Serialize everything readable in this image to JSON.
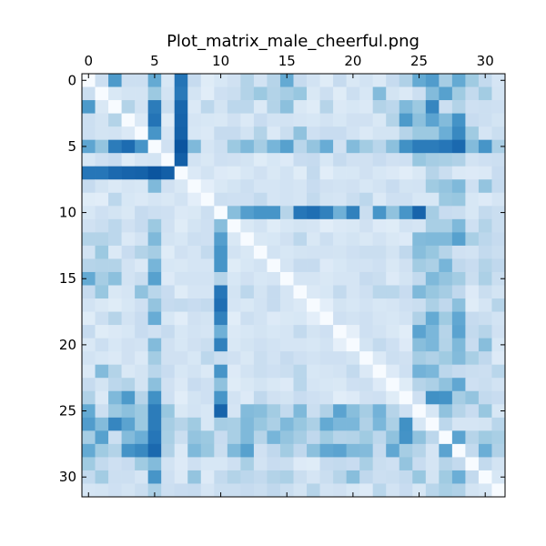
{
  "chart_data": {
    "type": "heatmap",
    "title": "Plot_matrix_male_cheerful.png",
    "xlabel": "",
    "ylabel": "",
    "colormap": "Blues",
    "value_range": [
      0,
      1
    ],
    "x_ticks": [
      0,
      5,
      10,
      15,
      20,
      25,
      30
    ],
    "y_ticks": [
      0,
      5,
      10,
      15,
      20,
      25,
      30
    ],
    "x_tick_position": "top",
    "n_rows": 32,
    "n_cols": 32,
    "matrix": [
      [
        0.0,
        0.22,
        0.59,
        0.22,
        0.22,
        0.52,
        0.16,
        0.74,
        0.25,
        0.12,
        0.16,
        0.2,
        0.31,
        0.19,
        0.3,
        0.52,
        0.25,
        0.19,
        0.12,
        0.25,
        0.15,
        0.19,
        0.14,
        0.25,
        0.32,
        0.52,
        0.58,
        0.35,
        0.52,
        0.37,
        0.26,
        0.17
      ],
      [
        0.23,
        0.0,
        0.15,
        0.18,
        0.18,
        0.38,
        0.19,
        0.72,
        0.18,
        0.11,
        0.21,
        0.23,
        0.31,
        0.38,
        0.31,
        0.35,
        0.39,
        0.15,
        0.22,
        0.12,
        0.22,
        0.16,
        0.44,
        0.18,
        0.14,
        0.22,
        0.44,
        0.56,
        0.37,
        0.26,
        0.36,
        0.18
      ],
      [
        0.59,
        0.15,
        0.0,
        0.31,
        0.19,
        0.71,
        0.23,
        0.79,
        0.14,
        0.28,
        0.18,
        0.28,
        0.28,
        0.14,
        0.31,
        0.42,
        0.15,
        0.12,
        0.3,
        0.14,
        0.16,
        0.14,
        0.31,
        0.28,
        0.45,
        0.38,
        0.67,
        0.22,
        0.31,
        0.21,
        0.22,
        0.21
      ],
      [
        0.22,
        0.18,
        0.31,
        0.0,
        0.14,
        0.74,
        0.12,
        0.8,
        0.17,
        0.16,
        0.15,
        0.2,
        0.14,
        0.24,
        0.19,
        0.19,
        0.17,
        0.16,
        0.19,
        0.16,
        0.2,
        0.2,
        0.15,
        0.31,
        0.59,
        0.42,
        0.55,
        0.44,
        0.62,
        0.24,
        0.22,
        0.18
      ],
      [
        0.22,
        0.18,
        0.19,
        0.14,
        0.0,
        0.61,
        0.17,
        0.81,
        0.16,
        0.14,
        0.25,
        0.25,
        0.19,
        0.31,
        0.14,
        0.23,
        0.41,
        0.21,
        0.24,
        0.24,
        0.19,
        0.14,
        0.18,
        0.18,
        0.3,
        0.38,
        0.38,
        0.5,
        0.66,
        0.37,
        0.17,
        0.23
      ],
      [
        0.54,
        0.4,
        0.71,
        0.77,
        0.61,
        0.0,
        0.2,
        0.86,
        0.45,
        0.17,
        0.22,
        0.38,
        0.45,
        0.35,
        0.47,
        0.56,
        0.29,
        0.4,
        0.51,
        0.2,
        0.44,
        0.36,
        0.29,
        0.42,
        0.63,
        0.71,
        0.71,
        0.73,
        0.78,
        0.44,
        0.61,
        0.33
      ],
      [
        0.16,
        0.21,
        0.24,
        0.12,
        0.17,
        0.18,
        0.0,
        0.82,
        0.19,
        0.15,
        0.21,
        0.2,
        0.18,
        0.12,
        0.16,
        0.13,
        0.24,
        0.25,
        0.16,
        0.25,
        0.2,
        0.2,
        0.24,
        0.2,
        0.21,
        0.39,
        0.35,
        0.34,
        0.32,
        0.19,
        0.21,
        0.22
      ],
      [
        0.73,
        0.73,
        0.78,
        0.8,
        0.81,
        0.86,
        0.82,
        0.0,
        0.14,
        0.19,
        0.13,
        0.12,
        0.16,
        0.2,
        0.15,
        0.19,
        0.12,
        0.26,
        0.11,
        0.16,
        0.16,
        0.2,
        0.16,
        0.14,
        0.11,
        0.15,
        0.3,
        0.23,
        0.14,
        0.13,
        0.14,
        0.24
      ],
      [
        0.25,
        0.18,
        0.14,
        0.17,
        0.16,
        0.45,
        0.2,
        0.15,
        0.0,
        0.1,
        0.15,
        0.18,
        0.22,
        0.17,
        0.17,
        0.19,
        0.17,
        0.24,
        0.2,
        0.19,
        0.2,
        0.16,
        0.19,
        0.24,
        0.18,
        0.19,
        0.37,
        0.4,
        0.45,
        0.21,
        0.4,
        0.25
      ],
      [
        0.12,
        0.11,
        0.28,
        0.16,
        0.14,
        0.17,
        0.15,
        0.19,
        0.1,
        0.0,
        0.22,
        0.21,
        0.21,
        0.26,
        0.17,
        0.19,
        0.17,
        0.26,
        0.18,
        0.17,
        0.23,
        0.28,
        0.14,
        0.21,
        0.21,
        0.16,
        0.16,
        0.38,
        0.39,
        0.16,
        0.13,
        0.17
      ],
      [
        0.16,
        0.21,
        0.18,
        0.15,
        0.25,
        0.22,
        0.21,
        0.14,
        0.15,
        0.22,
        0.0,
        0.43,
        0.57,
        0.61,
        0.61,
        0.3,
        0.73,
        0.76,
        0.69,
        0.49,
        0.69,
        0.23,
        0.61,
        0.41,
        0.61,
        0.8,
        0.35,
        0.24,
        0.23,
        0.16,
        0.26,
        0.23
      ],
      [
        0.2,
        0.23,
        0.28,
        0.2,
        0.25,
        0.38,
        0.2,
        0.12,
        0.18,
        0.21,
        0.43,
        0.0,
        0.15,
        0.19,
        0.12,
        0.16,
        0.18,
        0.17,
        0.11,
        0.14,
        0.15,
        0.2,
        0.13,
        0.12,
        0.19,
        0.17,
        0.34,
        0.34,
        0.45,
        0.21,
        0.31,
        0.23
      ],
      [
        0.31,
        0.31,
        0.28,
        0.14,
        0.19,
        0.45,
        0.18,
        0.16,
        0.22,
        0.21,
        0.57,
        0.15,
        0.0,
        0.15,
        0.16,
        0.2,
        0.28,
        0.15,
        0.22,
        0.16,
        0.18,
        0.15,
        0.19,
        0.15,
        0.13,
        0.44,
        0.45,
        0.45,
        0.56,
        0.34,
        0.28,
        0.25
      ],
      [
        0.19,
        0.38,
        0.14,
        0.24,
        0.31,
        0.35,
        0.12,
        0.2,
        0.17,
        0.26,
        0.61,
        0.19,
        0.15,
        0.0,
        0.19,
        0.16,
        0.18,
        0.19,
        0.19,
        0.18,
        0.21,
        0.23,
        0.23,
        0.18,
        0.27,
        0.43,
        0.39,
        0.3,
        0.2,
        0.19,
        0.26,
        0.23
      ],
      [
        0.3,
        0.31,
        0.31,
        0.19,
        0.14,
        0.47,
        0.16,
        0.15,
        0.17,
        0.17,
        0.61,
        0.12,
        0.16,
        0.19,
        0.0,
        0.17,
        0.25,
        0.25,
        0.13,
        0.16,
        0.19,
        0.19,
        0.21,
        0.15,
        0.2,
        0.36,
        0.33,
        0.47,
        0.27,
        0.24,
        0.31,
        0.27
      ],
      [
        0.52,
        0.35,
        0.42,
        0.19,
        0.23,
        0.56,
        0.13,
        0.19,
        0.19,
        0.19,
        0.3,
        0.16,
        0.2,
        0.16,
        0.17,
        0.0,
        0.17,
        0.17,
        0.15,
        0.17,
        0.17,
        0.25,
        0.23,
        0.13,
        0.18,
        0.26,
        0.45,
        0.4,
        0.36,
        0.23,
        0.33,
        0.23
      ],
      [
        0.25,
        0.39,
        0.15,
        0.17,
        0.41,
        0.29,
        0.24,
        0.12,
        0.17,
        0.17,
        0.73,
        0.18,
        0.28,
        0.18,
        0.25,
        0.17,
        0.0,
        0.14,
        0.16,
        0.26,
        0.17,
        0.21,
        0.29,
        0.29,
        0.24,
        0.45,
        0.39,
        0.35,
        0.27,
        0.13,
        0.23,
        0.18
      ],
      [
        0.19,
        0.15,
        0.12,
        0.16,
        0.21,
        0.4,
        0.25,
        0.26,
        0.24,
        0.26,
        0.76,
        0.17,
        0.15,
        0.19,
        0.25,
        0.17,
        0.14,
        0.0,
        0.1,
        0.18,
        0.16,
        0.19,
        0.16,
        0.17,
        0.21,
        0.23,
        0.33,
        0.27,
        0.42,
        0.12,
        0.17,
        0.3
      ],
      [
        0.12,
        0.22,
        0.3,
        0.19,
        0.24,
        0.51,
        0.16,
        0.11,
        0.2,
        0.18,
        0.69,
        0.11,
        0.22,
        0.19,
        0.13,
        0.15,
        0.16,
        0.1,
        0.0,
        0.21,
        0.19,
        0.21,
        0.17,
        0.16,
        0.19,
        0.32,
        0.52,
        0.37,
        0.53,
        0.25,
        0.23,
        0.19
      ],
      [
        0.25,
        0.12,
        0.14,
        0.16,
        0.24,
        0.2,
        0.25,
        0.16,
        0.19,
        0.17,
        0.49,
        0.14,
        0.16,
        0.18,
        0.16,
        0.17,
        0.26,
        0.18,
        0.21,
        0.0,
        0.09,
        0.21,
        0.19,
        0.15,
        0.11,
        0.55,
        0.46,
        0.3,
        0.55,
        0.26,
        0.3,
        0.2
      ],
      [
        0.15,
        0.22,
        0.16,
        0.2,
        0.19,
        0.44,
        0.2,
        0.16,
        0.2,
        0.23,
        0.69,
        0.15,
        0.18,
        0.21,
        0.19,
        0.17,
        0.17,
        0.16,
        0.19,
        0.09,
        0.0,
        0.18,
        0.26,
        0.21,
        0.13,
        0.43,
        0.46,
        0.31,
        0.45,
        0.24,
        0.43,
        0.16
      ],
      [
        0.19,
        0.16,
        0.14,
        0.2,
        0.14,
        0.36,
        0.2,
        0.2,
        0.16,
        0.28,
        0.23,
        0.2,
        0.15,
        0.23,
        0.19,
        0.25,
        0.21,
        0.19,
        0.21,
        0.21,
        0.18,
        0.0,
        0.14,
        0.22,
        0.2,
        0.35,
        0.32,
        0.37,
        0.44,
        0.34,
        0.27,
        0.13
      ],
      [
        0.14,
        0.44,
        0.31,
        0.15,
        0.18,
        0.29,
        0.24,
        0.16,
        0.19,
        0.14,
        0.61,
        0.13,
        0.19,
        0.23,
        0.21,
        0.23,
        0.29,
        0.16,
        0.17,
        0.19,
        0.26,
        0.14,
        0.0,
        0.13,
        0.21,
        0.48,
        0.46,
        0.28,
        0.25,
        0.23,
        0.22,
        0.29
      ],
      [
        0.25,
        0.18,
        0.28,
        0.31,
        0.18,
        0.42,
        0.2,
        0.14,
        0.24,
        0.21,
        0.41,
        0.12,
        0.15,
        0.18,
        0.15,
        0.13,
        0.29,
        0.17,
        0.16,
        0.15,
        0.21,
        0.22,
        0.13,
        0.0,
        0.12,
        0.3,
        0.33,
        0.41,
        0.53,
        0.21,
        0.23,
        0.19
      ],
      [
        0.32,
        0.14,
        0.45,
        0.59,
        0.3,
        0.63,
        0.21,
        0.11,
        0.18,
        0.21,
        0.61,
        0.19,
        0.13,
        0.27,
        0.2,
        0.18,
        0.24,
        0.21,
        0.19,
        0.11,
        0.13,
        0.2,
        0.21,
        0.12,
        0.0,
        0.21,
        0.63,
        0.62,
        0.35,
        0.4,
        0.26,
        0.24
      ],
      [
        0.52,
        0.22,
        0.38,
        0.42,
        0.38,
        0.71,
        0.39,
        0.15,
        0.19,
        0.16,
        0.8,
        0.17,
        0.44,
        0.43,
        0.36,
        0.26,
        0.45,
        0.23,
        0.32,
        0.55,
        0.43,
        0.35,
        0.48,
        0.3,
        0.21,
        0.0,
        0.16,
        0.41,
        0.3,
        0.24,
        0.39,
        0.16
      ],
      [
        0.58,
        0.44,
        0.67,
        0.55,
        0.38,
        0.71,
        0.35,
        0.3,
        0.37,
        0.16,
        0.35,
        0.34,
        0.45,
        0.39,
        0.33,
        0.45,
        0.39,
        0.33,
        0.52,
        0.46,
        0.46,
        0.32,
        0.46,
        0.33,
        0.63,
        0.16,
        0.0,
        0.28,
        0.17,
        0.17,
        0.18,
        0.29
      ],
      [
        0.35,
        0.56,
        0.22,
        0.44,
        0.5,
        0.73,
        0.34,
        0.23,
        0.4,
        0.38,
        0.24,
        0.34,
        0.45,
        0.3,
        0.47,
        0.4,
        0.35,
        0.27,
        0.37,
        0.3,
        0.31,
        0.37,
        0.28,
        0.41,
        0.62,
        0.41,
        0.28,
        0.0,
        0.55,
        0.3,
        0.37,
        0.34
      ],
      [
        0.52,
        0.37,
        0.31,
        0.62,
        0.66,
        0.78,
        0.32,
        0.14,
        0.45,
        0.39,
        0.23,
        0.45,
        0.56,
        0.2,
        0.27,
        0.36,
        0.27,
        0.42,
        0.53,
        0.55,
        0.45,
        0.44,
        0.25,
        0.53,
        0.35,
        0.3,
        0.17,
        0.55,
        0.0,
        0.26,
        0.5,
        0.32
      ],
      [
        0.37,
        0.26,
        0.21,
        0.24,
        0.37,
        0.44,
        0.19,
        0.13,
        0.21,
        0.16,
        0.16,
        0.21,
        0.34,
        0.19,
        0.24,
        0.23,
        0.13,
        0.12,
        0.25,
        0.26,
        0.24,
        0.34,
        0.23,
        0.21,
        0.4,
        0.24,
        0.17,
        0.3,
        0.26,
        0.0,
        0.26,
        0.18
      ],
      [
        0.26,
        0.36,
        0.22,
        0.22,
        0.17,
        0.61,
        0.21,
        0.14,
        0.4,
        0.13,
        0.26,
        0.31,
        0.28,
        0.26,
        0.31,
        0.33,
        0.23,
        0.17,
        0.23,
        0.3,
        0.43,
        0.27,
        0.22,
        0.23,
        0.26,
        0.39,
        0.18,
        0.37,
        0.5,
        0.26,
        0.0,
        0.16
      ],
      [
        0.17,
        0.18,
        0.21,
        0.18,
        0.23,
        0.33,
        0.22,
        0.24,
        0.25,
        0.17,
        0.23,
        0.23,
        0.25,
        0.23,
        0.27,
        0.23,
        0.18,
        0.3,
        0.19,
        0.2,
        0.16,
        0.13,
        0.29,
        0.19,
        0.24,
        0.16,
        0.29,
        0.34,
        0.32,
        0.18,
        0.16,
        0.0
      ]
    ]
  }
}
